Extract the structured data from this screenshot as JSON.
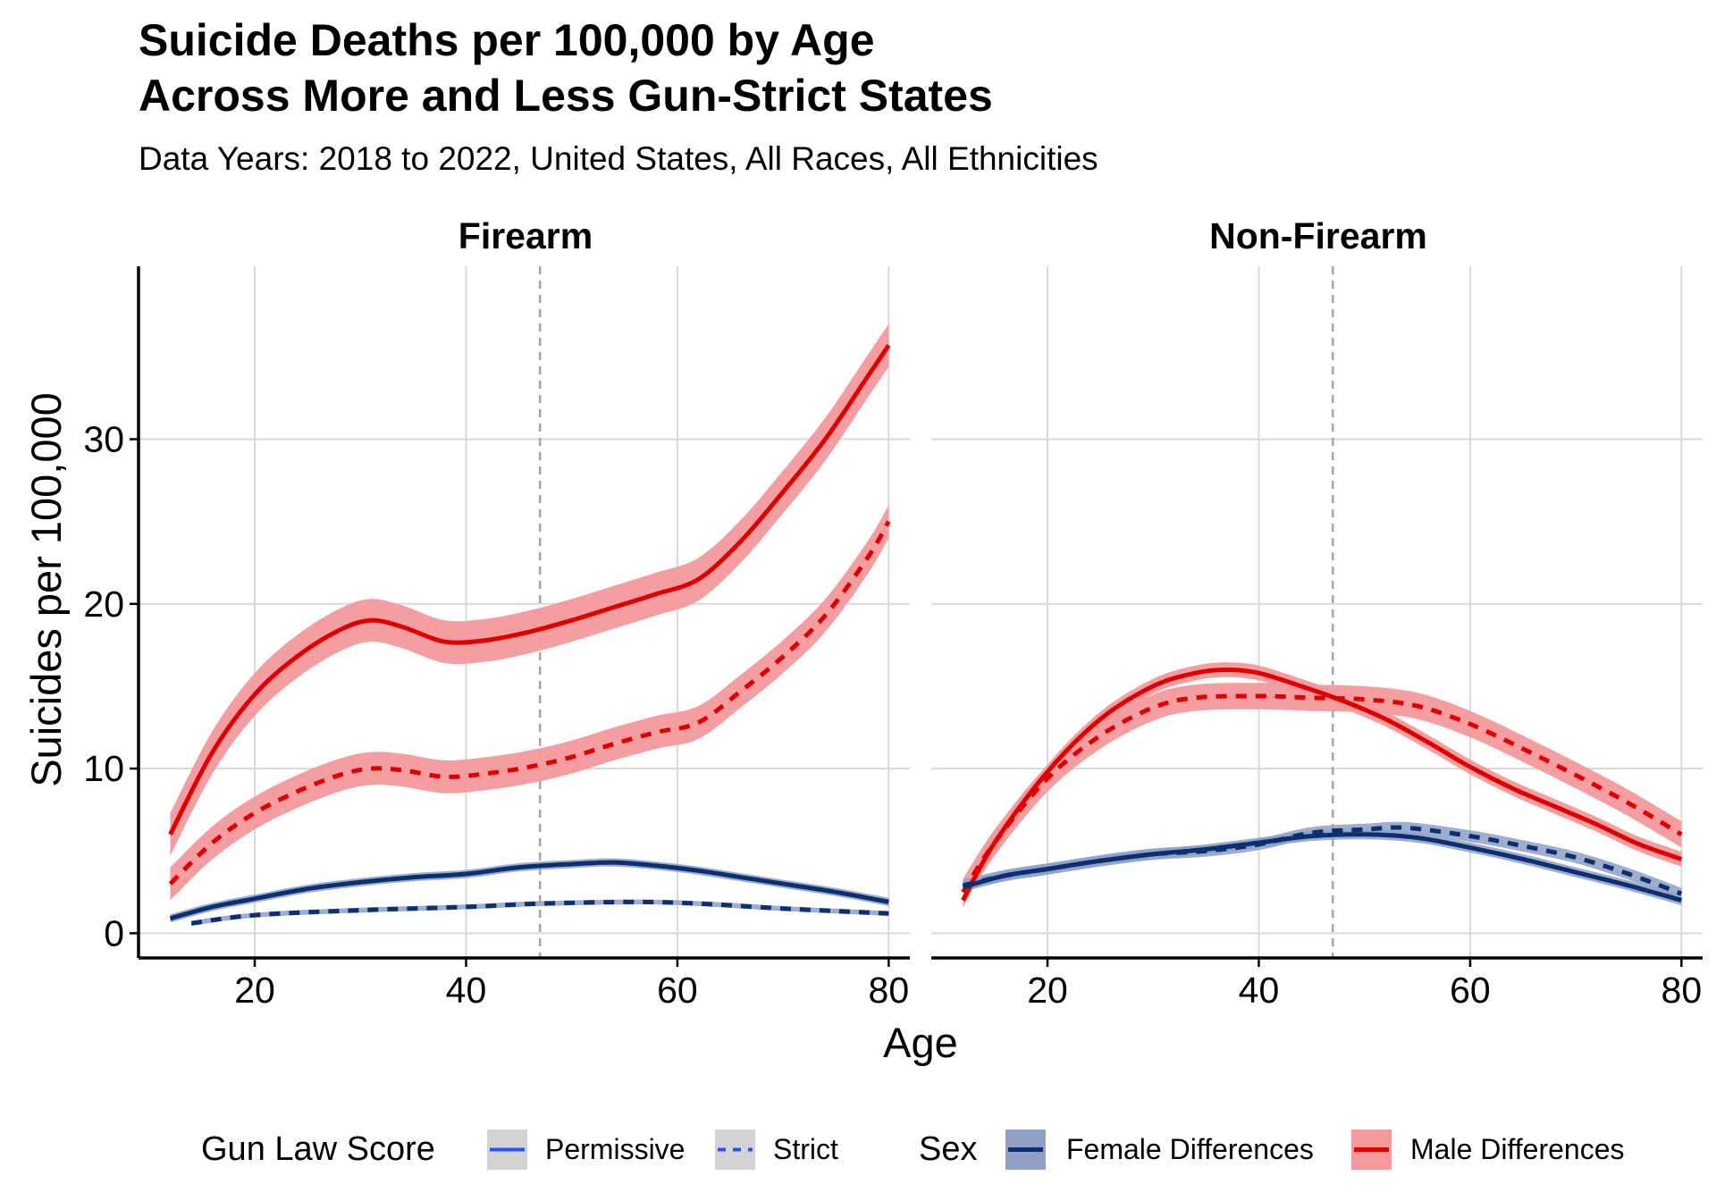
{
  "title_line1": "Suicide Deaths per 100,000 by Age",
  "title_line2": "Across More and Less Gun-Strict States",
  "subtitle": "Data Years: 2018 to 2022, United States, All Races, All Ethnicities",
  "legend": {
    "gun_law_title": "Gun Law Score",
    "gun_law_items": [
      "Permissive",
      "Strict"
    ],
    "sex_title": "Sex",
    "sex_items": [
      "Female Differences",
      "Male Differences"
    ]
  },
  "colors": {
    "male_line": "#e00000",
    "male_band": "#f4999c",
    "female_line": "#0a2f73",
    "female_band": "#8fa0c4",
    "legend_blue": "#2255ff",
    "grid": "#d9d9d9",
    "vline": "#a8a8a8"
  },
  "chart_data": {
    "type": "line",
    "xlabel": "Age",
    "ylabel": "Suicides per 100,000",
    "xlim": [
      9,
      82
    ],
    "ylim": [
      -1.5,
      40.5
    ],
    "xticks": [
      20,
      40,
      60,
      80
    ],
    "yticks": [
      0,
      10,
      20,
      30
    ],
    "vline_x": 47,
    "grid": true,
    "legend_position": "bottom",
    "panels": [
      {
        "name": "Firearm",
        "series": [
          {
            "sex": "Male Differences",
            "gun_law": "Permissive",
            "x": [
              12,
              16,
              20,
              24,
              28,
              31,
              34,
              38,
              42,
              46,
              50,
              54,
              58,
              62,
              66,
              70,
              74,
              78,
              80
            ],
            "y": [
              6.0,
              11.0,
              14.5,
              16.8,
              18.4,
              19.0,
              18.6,
              17.7,
              17.8,
              18.3,
              19.0,
              19.8,
              20.6,
              21.5,
              23.8,
              26.8,
              30.0,
              33.8,
              35.7
            ],
            "band": 1.3
          },
          {
            "sex": "Male Differences",
            "gun_law": "Strict",
            "x": [
              12,
              16,
              20,
              24,
              28,
              31,
              34,
              38,
              42,
              46,
              50,
              54,
              58,
              62,
              66,
              70,
              74,
              78,
              80
            ],
            "y": [
              3.0,
              5.5,
              7.3,
              8.6,
              9.6,
              10.0,
              9.9,
              9.5,
              9.7,
              10.1,
              10.7,
              11.5,
              12.2,
              12.8,
              14.7,
              16.8,
              19.3,
              22.8,
              25.0
            ],
            "band": 1.0
          },
          {
            "sex": "Female Differences",
            "gun_law": "Permissive",
            "x": [
              12,
              16,
              20,
              25,
              30,
              35,
              40,
              45,
              50,
              54,
              58,
              62,
              66,
              70,
              75,
              80
            ],
            "y": [
              0.9,
              1.6,
              2.1,
              2.7,
              3.1,
              3.4,
              3.6,
              4.0,
              4.2,
              4.3,
              4.1,
              3.8,
              3.4,
              3.0,
              2.5,
              1.9
            ],
            "band": 0.25
          },
          {
            "sex": "Female Differences",
            "gun_law": "Strict",
            "x": [
              14,
              20,
              30,
              40,
              47,
              56,
              62,
              70,
              80
            ],
            "y": [
              0.6,
              1.1,
              1.4,
              1.6,
              1.8,
              1.9,
              1.8,
              1.5,
              1.2
            ],
            "band": 0.15
          }
        ]
      },
      {
        "name": "Non-Firearm",
        "series": [
          {
            "sex": "Male Differences",
            "gun_law": "Permissive",
            "x": [
              12,
              15,
              20,
              25,
              30,
              34,
              37,
              40,
              44,
              48,
              52,
              56,
              60,
              64,
              68,
              72,
              76,
              80
            ],
            "y": [
              2.0,
              5.5,
              9.8,
              13.0,
              15.0,
              15.8,
              16.0,
              15.8,
              15.0,
              14.1,
              13.0,
              11.6,
              10.1,
              8.8,
              7.7,
              6.6,
              5.4,
              4.5
            ],
            "band": 0.45
          },
          {
            "sex": "Male Differences",
            "gun_law": "Strict",
            "x": [
              12,
              15,
              20,
              25,
              30,
              34,
              40,
              45,
              50,
              55,
              60,
              65,
              70,
              75,
              80
            ],
            "y": [
              2.5,
              5.5,
              9.4,
              12.0,
              13.7,
              14.3,
              14.4,
              14.3,
              14.2,
              13.8,
              12.7,
              11.2,
              9.6,
              7.9,
              6.0
            ],
            "band": 0.8
          },
          {
            "sex": "Female Differences",
            "gun_law": "Permissive",
            "x": [
              12,
              16,
              20,
              25,
              30,
              35,
              40,
              45,
              50,
              55,
              60,
              65,
              70,
              75,
              80
            ],
            "y": [
              2.8,
              3.5,
              3.9,
              4.4,
              4.8,
              5.1,
              5.5,
              5.9,
              6.0,
              5.8,
              5.2,
              4.5,
              3.7,
              2.9,
              2.0
            ],
            "band": 0.3
          },
          {
            "sex": "Female Differences",
            "gun_law": "Strict",
            "x": [
              12,
              16,
              20,
              25,
              30,
              35,
              40,
              45,
              50,
              54,
              60,
              65,
              70,
              75,
              80
            ],
            "y": [
              2.9,
              3.5,
              3.9,
              4.4,
              4.8,
              5.0,
              5.4,
              6.1,
              6.3,
              6.4,
              5.9,
              5.3,
              4.6,
              3.6,
              2.4
            ],
            "band": 0.35
          }
        ]
      }
    ]
  }
}
